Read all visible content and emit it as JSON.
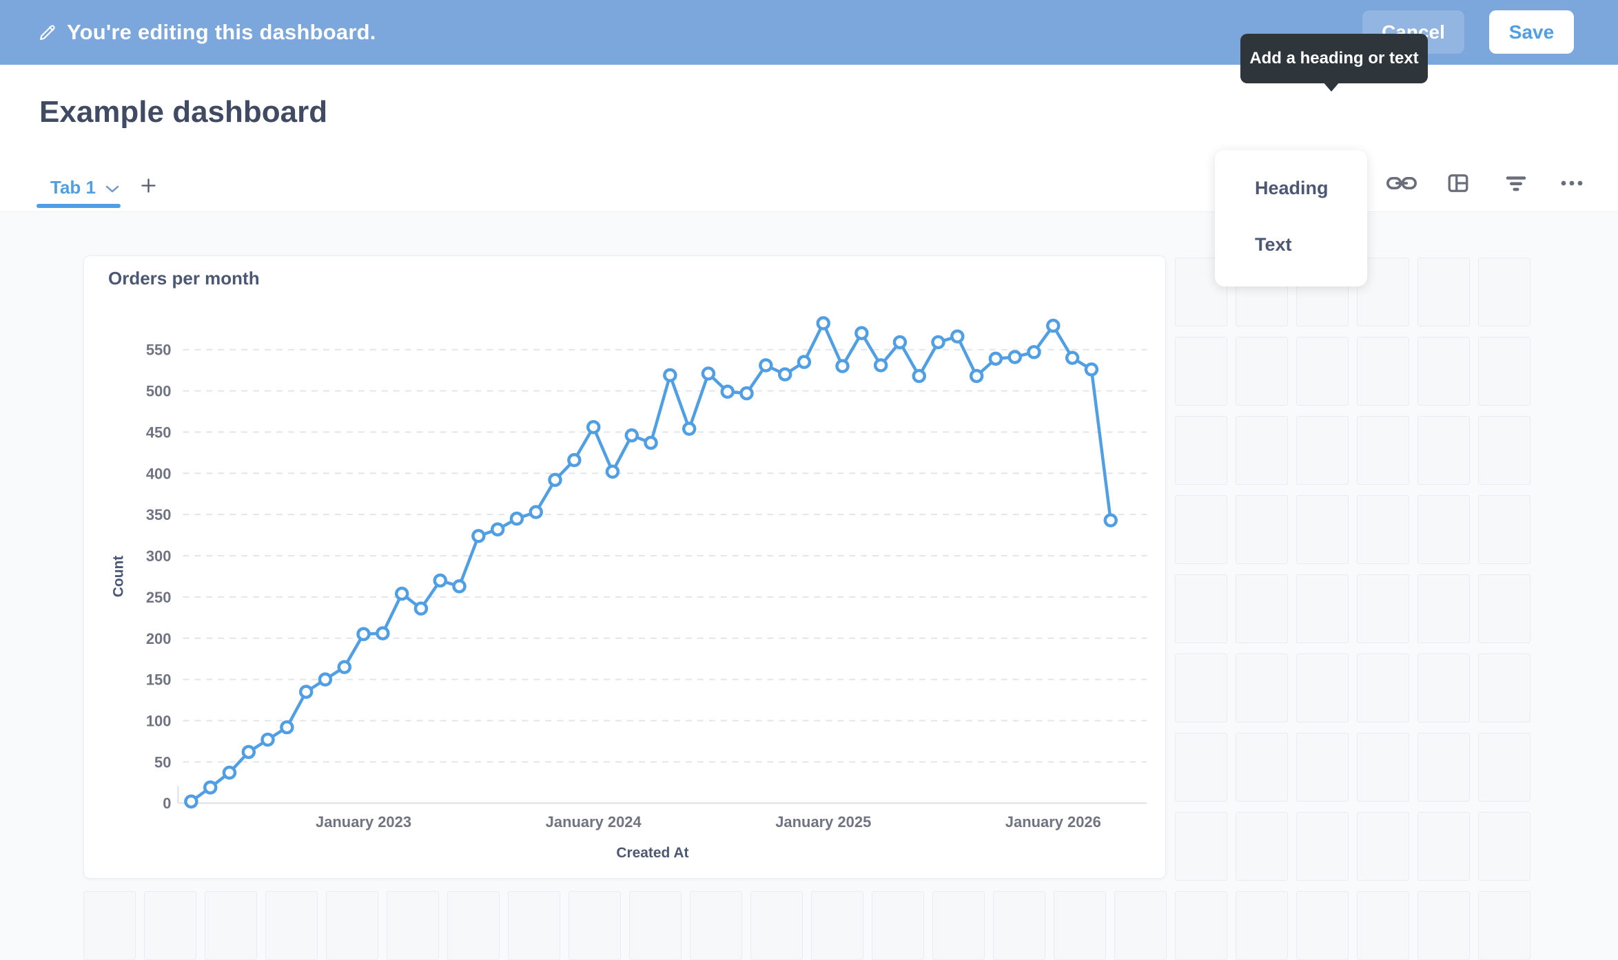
{
  "colors": {
    "accent": "#509EE3",
    "edit_bar_bg": "#7CA7DD",
    "tooltip_bg": "#2E353B",
    "text_dark": "#4C5773",
    "axis_text": "#6F7480",
    "page_bg": "#F9FAFB"
  },
  "edit_bar": {
    "message": "You're editing this dashboard.",
    "cancel_label": "Cancel",
    "save_label": "Save"
  },
  "dashboard": {
    "title": "Example dashboard"
  },
  "tabs": {
    "active_label": "Tab 1"
  },
  "toolbar": {
    "tooltip": "Add a heading or text",
    "icons": [
      "plus-icon",
      "text-icon",
      "link-icon",
      "add-section-icon",
      "filter-icon",
      "ellipsis-icon"
    ]
  },
  "text_menu": {
    "items": [
      {
        "label": "Heading"
      },
      {
        "label": "Text"
      }
    ]
  },
  "chart_data": {
    "type": "line",
    "title": "Orders per month",
    "xlabel": "Created At",
    "ylabel": "Count",
    "line_color": "#509EE3",
    "marker": "open-circle",
    "grid": "dashed-horizontal",
    "ylim": [
      0,
      590
    ],
    "y_ticks": [
      0,
      50,
      100,
      150,
      200,
      250,
      300,
      350,
      400,
      450,
      500,
      550
    ],
    "x_tick_labels": [
      "January 2023",
      "January 2024",
      "January 2025",
      "January 2026"
    ],
    "x_tick_indices": [
      9,
      21,
      33,
      45
    ],
    "x": [
      "2022-04",
      "2022-05",
      "2022-06",
      "2022-07",
      "2022-08",
      "2022-09",
      "2022-10",
      "2022-11",
      "2022-12",
      "2023-01",
      "2023-02",
      "2023-03",
      "2023-04",
      "2023-05",
      "2023-06",
      "2023-07",
      "2023-08",
      "2023-09",
      "2023-10",
      "2023-11",
      "2023-12",
      "2024-01",
      "2024-02",
      "2024-03",
      "2024-04",
      "2024-05",
      "2024-06",
      "2024-07",
      "2024-08",
      "2024-09",
      "2024-10",
      "2024-11",
      "2024-12",
      "2025-01",
      "2025-02",
      "2025-03",
      "2025-04",
      "2025-05",
      "2025-06",
      "2025-07",
      "2025-08",
      "2025-09",
      "2025-10",
      "2025-11",
      "2025-12",
      "2026-01",
      "2026-02",
      "2026-03",
      "2026-04"
    ],
    "values": [
      2,
      19,
      37,
      62,
      77,
      92,
      135,
      150,
      165,
      205,
      206,
      254,
      236,
      270,
      263,
      324,
      332,
      345,
      353,
      392,
      416,
      456,
      402,
      446,
      437,
      519,
      454,
      521,
      499,
      497,
      531,
      520,
      535,
      582,
      530,
      570,
      531,
      559,
      518,
      559,
      566,
      518,
      539,
      541,
      547,
      579,
      540,
      526,
      343
    ]
  }
}
